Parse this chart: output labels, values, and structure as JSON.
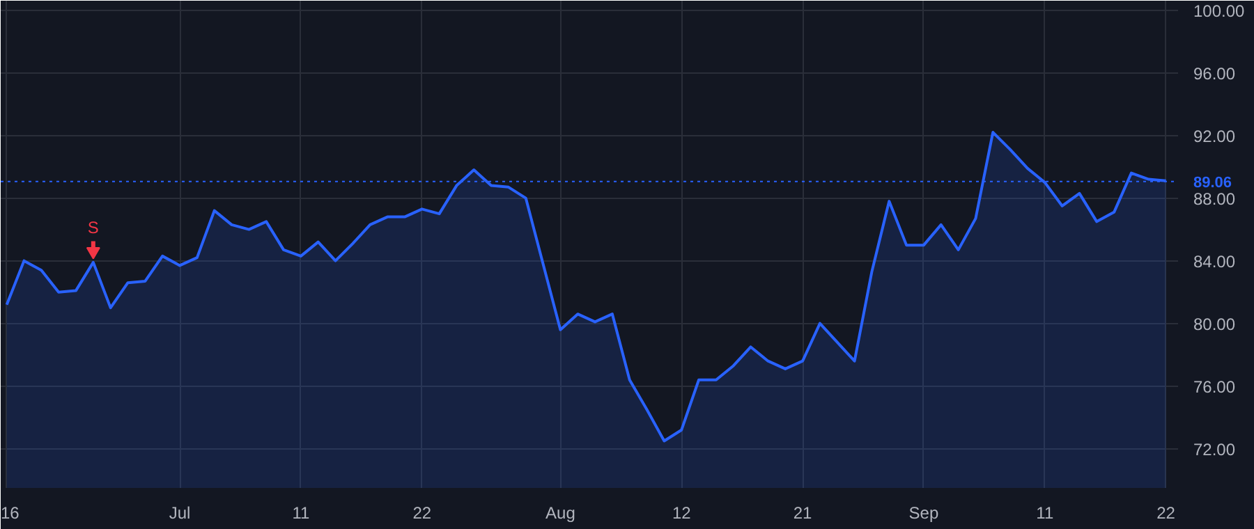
{
  "chart_data": {
    "type": "area",
    "categories": [
      "16",
      null,
      null,
      null,
      null,
      null,
      null,
      null,
      null,
      null,
      "Jul",
      null,
      null,
      null,
      null,
      null,
      null,
      "11",
      null,
      null,
      null,
      null,
      null,
      null,
      "22",
      null,
      null,
      null,
      null,
      null,
      null,
      null,
      "Aug",
      null,
      null,
      null,
      null,
      null,
      null,
      "12",
      null,
      null,
      null,
      null,
      null,
      null,
      "21",
      null,
      null,
      null,
      null,
      null,
      null,
      "Sep",
      null,
      null,
      null,
      null,
      null,
      null,
      "11",
      null,
      null,
      null,
      null,
      null,
      null,
      "22"
    ],
    "series": [
      {
        "color": "#2962ff",
        "values": [
          81.2,
          84.0,
          83.4,
          82.0,
          82.1,
          83.9,
          81.0,
          82.6,
          82.7,
          84.3,
          83.7,
          84.2,
          87.2,
          86.3,
          86.0,
          86.5,
          84.7,
          84.3,
          85.2,
          84.0,
          85.1,
          86.3,
          86.8,
          86.8,
          87.3,
          87.0,
          88.8,
          89.8,
          88.8,
          88.7,
          88.0,
          83.8,
          79.6,
          80.6,
          80.1,
          80.6,
          76.4,
          74.5,
          72.5,
          73.2,
          76.4,
          76.4,
          77.3,
          78.5,
          77.6,
          77.1,
          77.6,
          80.0,
          78.8,
          77.6,
          83.3,
          87.8,
          85.0,
          85.0,
          86.3,
          84.7,
          86.7,
          92.2,
          91.1,
          89.9,
          89.0,
          87.5,
          88.3,
          86.5,
          87.1,
          89.6,
          89.2,
          89.1
        ]
      }
    ],
    "ylim": [
      69.5,
      100.6
    ],
    "yticks": [
      {
        "value": 72,
        "label": "72.00"
      },
      {
        "value": 76,
        "label": "76.00"
      },
      {
        "value": 80,
        "label": "80.00"
      },
      {
        "value": 84,
        "label": "84.00"
      },
      {
        "value": 88,
        "label": "88.00"
      },
      {
        "value": 92,
        "label": "92.00"
      },
      {
        "value": 96,
        "label": "96.00"
      },
      {
        "value": 100,
        "label": "100.00"
      }
    ],
    "ref_lines": [
      {
        "axis": "y",
        "value": 89.06,
        "label": "89.06",
        "color": "#2962ff",
        "line_style": "dotted"
      }
    ],
    "annotations": [
      {
        "text": "S",
        "y": 83.9
      }
    ],
    "grid": true
  }
}
